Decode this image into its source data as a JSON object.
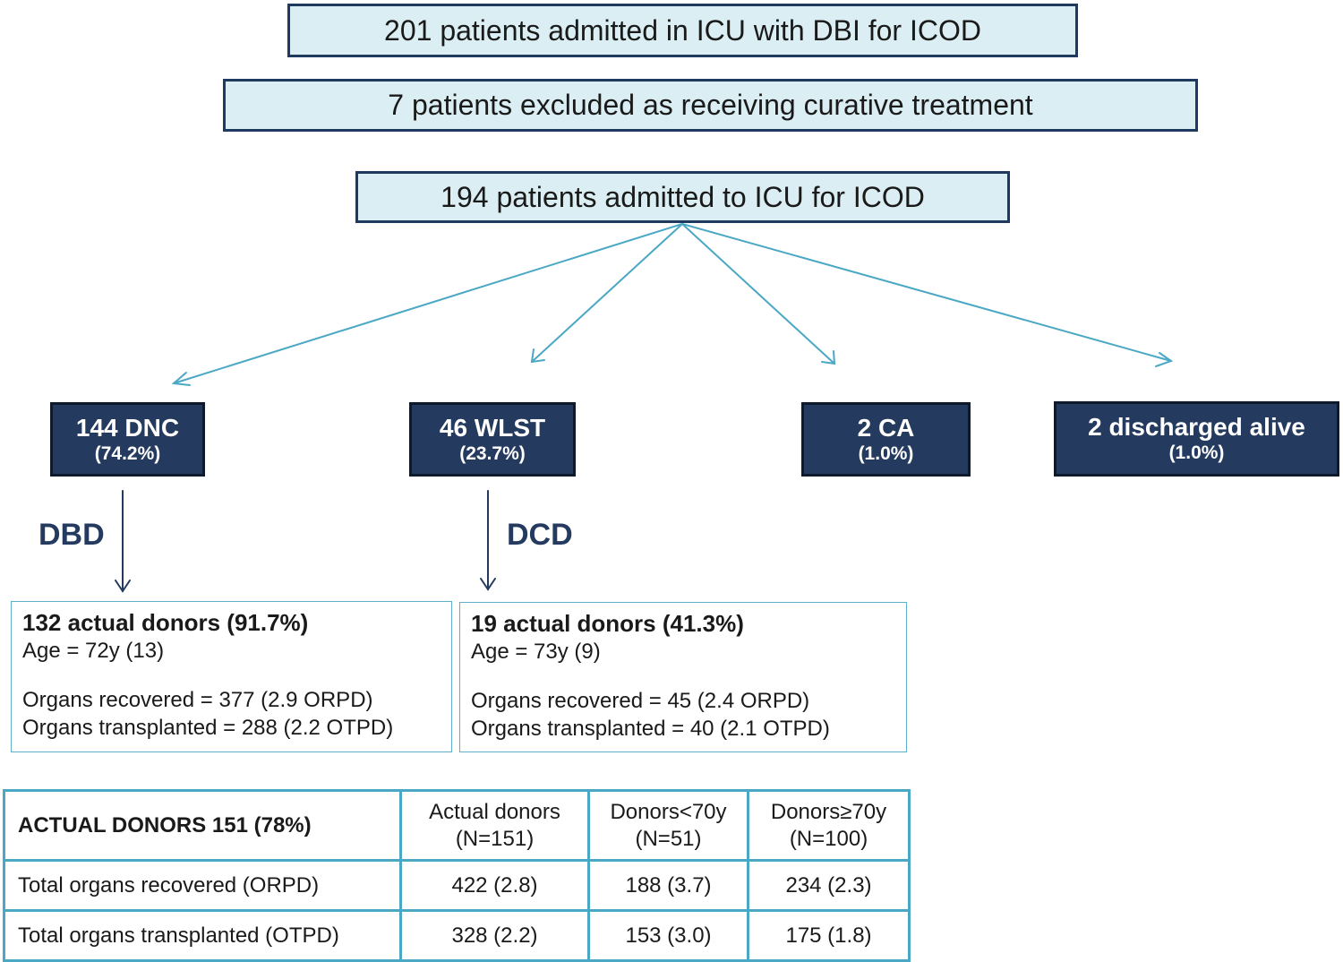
{
  "top_boxes": {
    "admitted": "201 patients admitted in ICU with DBI for ICOD",
    "excluded": "7 patients excluded as receiving curative treatment",
    "icu": "194 patients admitted to ICU for ICOD"
  },
  "outcomes": [
    {
      "label": "144 DNC",
      "pct": "(74.2%)"
    },
    {
      "label": "46 WLST",
      "pct": "(23.7%)"
    },
    {
      "label": "2 CA",
      "pct": "(1.0%)"
    },
    {
      "label": "2 discharged alive",
      "pct": "(1.0%)"
    }
  ],
  "routes": {
    "dbd": "DBD",
    "dcd": "DCD"
  },
  "donor_boxes": [
    {
      "title": "132 actual donors (91.7%)",
      "age": "Age = 72y (13)",
      "recovered": "Organs recovered = 377 (2.9 ORPD)",
      "transplanted": "Organs transplanted = 288 (2.2 OTPD)"
    },
    {
      "title": "19 actual donors (41.3%)",
      "age": "Age = 73y (9)",
      "recovered": "Organs recovered = 45 (2.4 ORPD)",
      "transplanted": "Organs transplanted = 40 (2.1 OTPD)"
    }
  ],
  "table": {
    "title": "ACTUAL DONORS 151 (78%)",
    "columns": [
      {
        "line1": "Actual donors",
        "line2": "(N=151)"
      },
      {
        "line1": "Donors<70y",
        "line2": "(N=51)"
      },
      {
        "line1": "Donors≥70y",
        "line2": "(N=100)"
      }
    ],
    "rows": [
      {
        "label": "Total organs recovered (ORPD)",
        "values": [
          "422 (2.8)",
          "188 (3.7)",
          "234 (2.3)"
        ]
      },
      {
        "label": "Total organs transplanted (OTPD)",
        "values": [
          "328 (2.2)",
          "153 (3.0)",
          "175 (1.8)"
        ]
      }
    ]
  },
  "colors": {
    "top_box_fill": "#daeef3",
    "outcome_fill": "#243a5e",
    "arrow_teal": "#4aa8c4",
    "arrow_dark": "#243a5e",
    "table_border": "#4aa8c4"
  }
}
